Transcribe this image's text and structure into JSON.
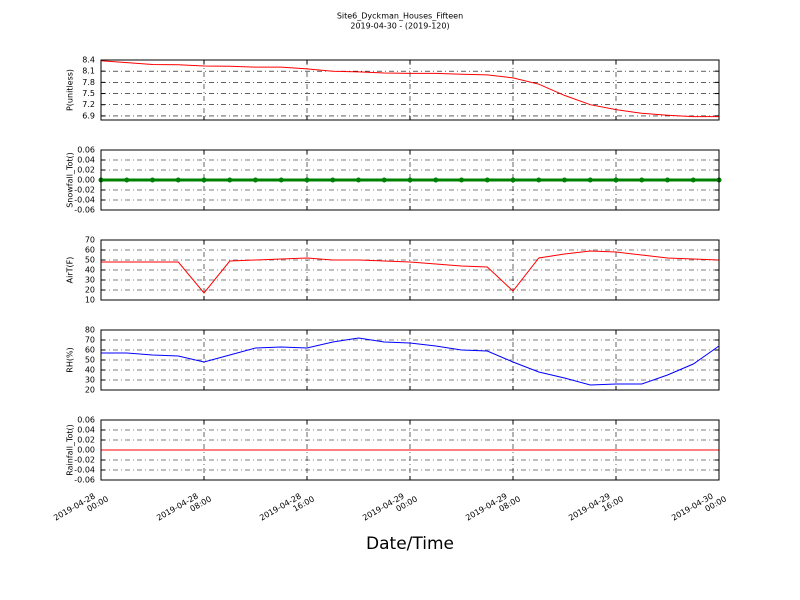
{
  "title": "Site6_Dyckman_Houses_Fifteen",
  "subtitle": "2019-04-30 - (2019-120)",
  "x_label": "Date/Time",
  "chart_data": [
    {
      "type": "line",
      "y_label": "P(unitless)",
      "color": "#ff0000",
      "grid": true,
      "xlim": [
        "2019-04-28 00:00",
        "2019-04-30 00:00"
      ],
      "xticks": [
        "2019-04-28 00:00",
        "2019-04-28 08:00",
        "2019-04-28 16:00",
        "2019-04-29 00:00",
        "2019-04-29 08:00",
        "2019-04-29 16:00",
        "2019-04-30 00:00"
      ],
      "ylim": [
        6.79,
        8.4
      ],
      "yticks": [
        6.9,
        7.2,
        7.5,
        7.8,
        8.1,
        8.4
      ],
      "x": [
        "2019-04-28 00:00",
        "2019-04-28 02:00",
        "2019-04-28 04:00",
        "2019-04-28 06:00",
        "2019-04-28 08:00",
        "2019-04-28 10:00",
        "2019-04-28 12:00",
        "2019-04-28 14:00",
        "2019-04-28 16:00",
        "2019-04-28 18:00",
        "2019-04-28 20:00",
        "2019-04-28 22:00",
        "2019-04-29 00:00",
        "2019-04-29 02:00",
        "2019-04-29 04:00",
        "2019-04-29 06:00",
        "2019-04-29 08:00",
        "2019-04-29 10:00",
        "2019-04-29 12:00",
        "2019-04-29 14:00",
        "2019-04-29 16:00",
        "2019-04-29 18:00",
        "2019-04-29 20:00",
        "2019-04-29 22:00",
        "2019-04-30 00:00"
      ],
      "values": [
        8.38,
        8.33,
        8.28,
        8.27,
        8.24,
        8.23,
        8.21,
        8.21,
        8.16,
        8.1,
        8.08,
        8.05,
        8.04,
        8.04,
        8.02,
        8.0,
        7.92,
        7.75,
        7.45,
        7.2,
        7.07,
        6.97,
        6.92,
        6.88,
        6.88
      ]
    },
    {
      "type": "line",
      "y_label": "Snowfall_Tot()",
      "color": "#008000",
      "markers": true,
      "grid": true,
      "xlim": [
        "2019-04-28 00:00",
        "2019-04-30 00:00"
      ],
      "xticks": [
        "2019-04-28 00:00",
        "2019-04-28 08:00",
        "2019-04-28 16:00",
        "2019-04-29 00:00",
        "2019-04-29 08:00",
        "2019-04-29 16:00",
        "2019-04-30 00:00"
      ],
      "ylim": [
        -0.06,
        0.06
      ],
      "yticks": [
        -0.06,
        -0.04,
        -0.02,
        {
          "value": 0,
          "label": "0.00"
        },
        0.02,
        0.04,
        0.06
      ],
      "x": [
        "2019-04-28 00:00",
        "2019-04-28 02:00",
        "2019-04-28 04:00",
        "2019-04-28 06:00",
        "2019-04-28 08:00",
        "2019-04-28 10:00",
        "2019-04-28 12:00",
        "2019-04-28 14:00",
        "2019-04-28 16:00",
        "2019-04-28 18:00",
        "2019-04-28 20:00",
        "2019-04-28 22:00",
        "2019-04-29 00:00",
        "2019-04-29 02:00",
        "2019-04-29 04:00",
        "2019-04-29 06:00",
        "2019-04-29 08:00",
        "2019-04-29 10:00",
        "2019-04-29 12:00",
        "2019-04-29 14:00",
        "2019-04-29 16:00",
        "2019-04-29 18:00",
        "2019-04-29 20:00",
        "2019-04-29 22:00",
        "2019-04-30 00:00"
      ],
      "values": [
        0,
        0,
        0,
        0,
        0,
        0,
        0,
        0,
        0,
        0,
        0,
        0,
        0,
        0,
        0,
        0,
        0,
        0,
        0,
        0,
        0,
        0,
        0,
        0,
        0
      ]
    },
    {
      "type": "line",
      "y_label": "AirT(F)",
      "color": "#ff0000",
      "grid": true,
      "xlim": [
        "2019-04-28 00:00",
        "2019-04-30 00:00"
      ],
      "xticks": [
        "2019-04-28 00:00",
        "2019-04-28 08:00",
        "2019-04-28 16:00",
        "2019-04-29 00:00",
        "2019-04-29 08:00",
        "2019-04-29 16:00",
        "2019-04-30 00:00"
      ],
      "ylim": [
        10,
        70
      ],
      "yticks": [
        10,
        20,
        30,
        40,
        50,
        60,
        70
      ],
      "x": [
        "2019-04-28 00:00",
        "2019-04-28 02:00",
        "2019-04-28 04:00",
        "2019-04-28 06:00",
        "2019-04-28 08:00",
        "2019-04-28 10:00",
        "2019-04-28 12:00",
        "2019-04-28 14:00",
        "2019-04-28 16:00",
        "2019-04-28 18:00",
        "2019-04-28 20:00",
        "2019-04-28 22:00",
        "2019-04-29 00:00",
        "2019-04-29 02:00",
        "2019-04-29 04:00",
        "2019-04-29 06:00",
        "2019-04-29 08:00",
        "2019-04-29 10:00",
        "2019-04-29 12:00",
        "2019-04-29 14:00",
        "2019-04-29 16:00",
        "2019-04-29 18:00",
        "2019-04-29 20:00",
        "2019-04-29 22:00",
        "2019-04-30 00:00"
      ],
      "values": [
        48,
        48,
        48,
        48,
        17,
        49,
        50,
        51,
        52,
        50,
        50,
        49,
        48,
        46,
        44,
        43,
        19,
        52,
        56,
        59,
        58,
        55,
        52,
        51,
        50
      ]
    },
    {
      "type": "line",
      "y_label": "RH(%)",
      "color": "#0000ff",
      "grid": true,
      "xlim": [
        "2019-04-28 00:00",
        "2019-04-30 00:00"
      ],
      "xticks": [
        "2019-04-28 00:00",
        "2019-04-28 08:00",
        "2019-04-28 16:00",
        "2019-04-29 00:00",
        "2019-04-29 08:00",
        "2019-04-29 16:00",
        "2019-04-30 00:00"
      ],
      "ylim": [
        20,
        80
      ],
      "yticks": [
        20,
        30,
        40,
        50,
        60,
        70,
        80
      ],
      "x": [
        "2019-04-28 00:00",
        "2019-04-28 02:00",
        "2019-04-28 04:00",
        "2019-04-28 06:00",
        "2019-04-28 08:00",
        "2019-04-28 10:00",
        "2019-04-28 12:00",
        "2019-04-28 14:00",
        "2019-04-28 16:00",
        "2019-04-28 18:00",
        "2019-04-28 20:00",
        "2019-04-28 22:00",
        "2019-04-29 00:00",
        "2019-04-29 02:00",
        "2019-04-29 04:00",
        "2019-04-29 06:00",
        "2019-04-29 08:00",
        "2019-04-29 10:00",
        "2019-04-29 12:00",
        "2019-04-29 14:00",
        "2019-04-29 16:00",
        "2019-04-29 18:00",
        "2019-04-29 20:00",
        "2019-04-29 22:00",
        "2019-04-30 00:00"
      ],
      "values": [
        57,
        57,
        55,
        54,
        48,
        55,
        62,
        63,
        62,
        68,
        72,
        68,
        67,
        64,
        60,
        59,
        48,
        38,
        32,
        25,
        26,
        26,
        35,
        46,
        64
      ]
    },
    {
      "type": "line",
      "y_label": "Rainfall_Tot()",
      "color": "#ff0000",
      "grid": true,
      "xlim": [
        "2019-04-28 00:00",
        "2019-04-30 00:00"
      ],
      "xticks": [
        "2019-04-28 00:00",
        "2019-04-28 08:00",
        "2019-04-28 16:00",
        "2019-04-29 00:00",
        "2019-04-29 08:00",
        "2019-04-29 16:00",
        "2019-04-30 00:00"
      ],
      "ylim": [
        -0.06,
        0.06
      ],
      "yticks": [
        -0.06,
        -0.04,
        -0.02,
        {
          "value": 0,
          "label": "0.00"
        },
        0.02,
        0.04,
        0.06
      ],
      "x": [
        "2019-04-28 00:00",
        "2019-04-28 02:00",
        "2019-04-28 04:00",
        "2019-04-28 06:00",
        "2019-04-28 08:00",
        "2019-04-28 10:00",
        "2019-04-28 12:00",
        "2019-04-28 14:00",
        "2019-04-28 16:00",
        "2019-04-28 18:00",
        "2019-04-28 20:00",
        "2019-04-28 22:00",
        "2019-04-29 00:00",
        "2019-04-29 02:00",
        "2019-04-29 04:00",
        "2019-04-29 06:00",
        "2019-04-29 08:00",
        "2019-04-29 10:00",
        "2019-04-29 12:00",
        "2019-04-29 14:00",
        "2019-04-29 16:00",
        "2019-04-29 18:00",
        "2019-04-29 20:00",
        "2019-04-29 22:00",
        "2019-04-30 00:00"
      ],
      "values": [
        0,
        0,
        0,
        0,
        0,
        0,
        0,
        0,
        0,
        0,
        0,
        0,
        0,
        0,
        0,
        0,
        0,
        0,
        0,
        0,
        0,
        0,
        0,
        0,
        0
      ]
    }
  ]
}
